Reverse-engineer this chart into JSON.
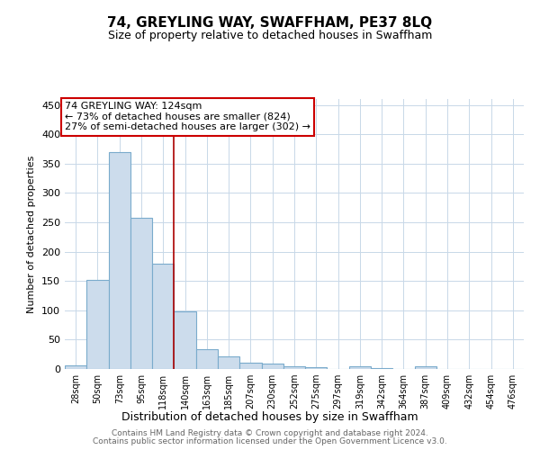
{
  "title": "74, GREYLING WAY, SWAFFHAM, PE37 8LQ",
  "subtitle": "Size of property relative to detached houses in Swaffham",
  "xlabel": "Distribution of detached houses by size in Swaffham",
  "ylabel": "Number of detached properties",
  "bins": [
    "28sqm",
    "50sqm",
    "73sqm",
    "95sqm",
    "118sqm",
    "140sqm",
    "163sqm",
    "185sqm",
    "207sqm",
    "230sqm",
    "252sqm",
    "275sqm",
    "297sqm",
    "319sqm",
    "342sqm",
    "364sqm",
    "387sqm",
    "409sqm",
    "432sqm",
    "454sqm",
    "476sqm"
  ],
  "values": [
    6,
    152,
    370,
    257,
    180,
    98,
    33,
    21,
    10,
    9,
    4,
    3,
    0,
    4,
    1,
    0,
    4,
    0,
    0,
    0,
    0
  ],
  "bar_color": "#ccdcec",
  "bar_edge_color": "#7aabcc",
  "property_line_color": "#aa0000",
  "annotation_text": "74 GREYLING WAY: 124sqm\n← 73% of detached houses are smaller (824)\n27% of semi-detached houses are larger (302) →",
  "annotation_box_color": "#ffffff",
  "annotation_box_edge_color": "#cc0000",
  "ylim": [
    0,
    460
  ],
  "yticks": [
    0,
    50,
    100,
    150,
    200,
    250,
    300,
    350,
    400,
    450
  ],
  "footer_line1": "Contains HM Land Registry data © Crown copyright and database right 2024.",
  "footer_line2": "Contains public sector information licensed under the Open Government Licence v3.0.",
  "background_color": "#ffffff",
  "grid_color": "#c8d8e8",
  "property_line_bin_index": 5
}
